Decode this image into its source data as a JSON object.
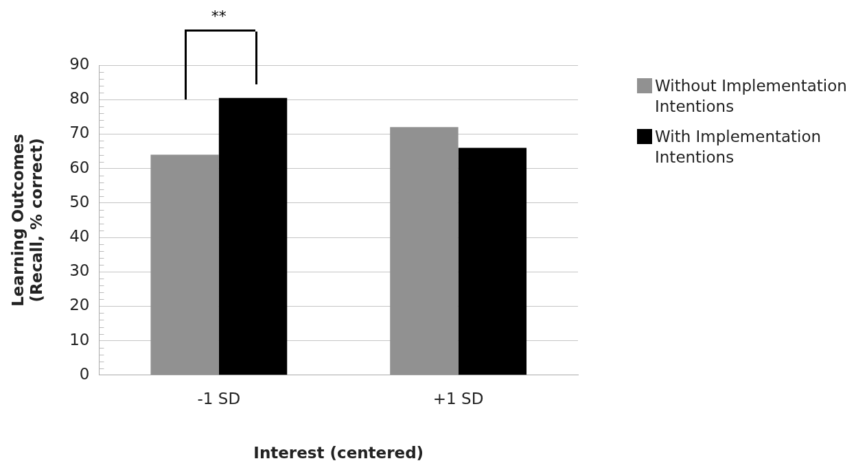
{
  "chart_data": {
    "type": "bar",
    "xlabel": "Interest (centered)",
    "ylabel": "Learning Outcomes\n(Recall, % correct)",
    "categories": [
      "-1 SD",
      "+1 SD"
    ],
    "series": [
      {
        "name": "Without Implementation Intentions",
        "color": "#919191",
        "values": [
          64,
          72
        ]
      },
      {
        "name": "With Implementation Intentions",
        "color": "#000000",
        "values": [
          80.5,
          66
        ]
      }
    ],
    "ylim": [
      0,
      90
    ],
    "yticks": [
      0,
      {
        "value": 2,
        "label": null
      },
      {
        "value": 4,
        "label": null
      },
      {
        "value": 6,
        "label": null
      },
      {
        "value": 8,
        "label": null
      },
      10,
      {
        "value": 12,
        "label": null
      },
      {
        "value": 14,
        "label": null
      },
      {
        "value": 16,
        "label": null
      },
      {
        "value": 18,
        "label": null
      },
      20,
      {
        "value": 22,
        "label": null
      },
      {
        "value": 24,
        "label": null
      },
      {
        "value": 26,
        "label": null
      },
      {
        "value": 28,
        "label": null
      },
      30,
      {
        "value": 32,
        "label": null
      },
      {
        "value": 34,
        "label": null
      },
      {
        "value": 36,
        "label": null
      },
      {
        "value": 38,
        "label": null
      },
      40,
      {
        "value": 42,
        "label": null
      },
      {
        "value": 44,
        "label": null
      },
      {
        "value": 46,
        "label": null
      },
      {
        "value": 48,
        "label": null
      },
      50,
      {
        "value": 52,
        "label": null
      },
      {
        "value": 54,
        "label": null
      },
      {
        "value": 56,
        "label": null
      },
      {
        "value": 58,
        "label": null
      },
      60,
      {
        "value": 62,
        "label": null
      },
      {
        "value": 64,
        "label": null
      },
      {
        "value": 66,
        "label": null
      },
      {
        "value": 68,
        "label": null
      },
      70,
      {
        "value": 72,
        "label": null
      },
      {
        "value": 74,
        "label": null
      },
      {
        "value": 76,
        "label": null
      },
      {
        "value": 78,
        "label": null
      },
      80,
      {
        "value": 82,
        "label": null
      },
      {
        "value": 84,
        "label": null
      },
      {
        "value": 86,
        "label": null
      },
      {
        "value": 88,
        "label": null
      },
      90
    ],
    "grid": "y",
    "legend": "right",
    "annotations": [
      "**"
    ]
  }
}
